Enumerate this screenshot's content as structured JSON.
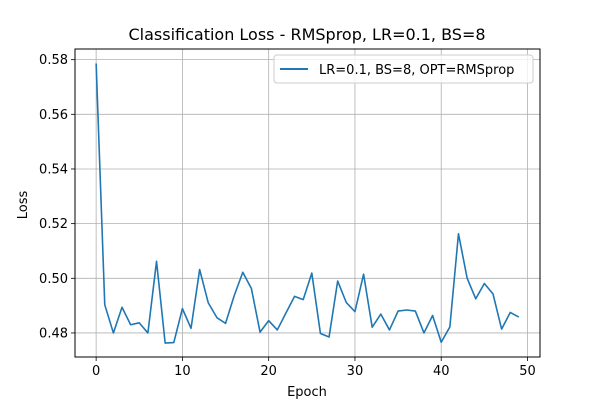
{
  "chart_data": {
    "type": "line",
    "title": "Classification Loss - RMSprop, LR=0.1, BS=8",
    "xlabel": "Epoch",
    "ylabel": "Loss",
    "xlim": [
      -2.45,
      51.45
    ],
    "ylim": [
      0.4712,
      0.5839
    ],
    "xticks": [
      0,
      10,
      20,
      30,
      40,
      50
    ],
    "yticks": [
      0.48,
      0.5,
      0.52,
      0.54,
      0.56,
      0.58
    ],
    "ytick_labels": [
      "0.48",
      "0.50",
      "0.52",
      "0.54",
      "0.56",
      "0.58"
    ],
    "grid": true,
    "legend_position": "upper-right",
    "series_color": "#1f77b4",
    "series": [
      {
        "name": "LR=0.1, BS=8, OPT=RMSprop",
        "x": [
          0,
          1,
          2,
          3,
          4,
          5,
          6,
          7,
          8,
          9,
          10,
          11,
          12,
          13,
          14,
          15,
          16,
          17,
          18,
          19,
          20,
          21,
          22,
          23,
          24,
          25,
          26,
          27,
          28,
          29,
          30,
          31,
          32,
          33,
          34,
          35,
          36,
          37,
          38,
          39,
          40,
          41,
          42,
          43,
          44,
          45,
          46,
          47,
          48,
          49
        ],
        "y": [
          0.5786,
          0.4903,
          0.48,
          0.4894,
          0.483,
          0.4837,
          0.48,
          0.5062,
          0.4763,
          0.4765,
          0.4889,
          0.4817,
          0.5032,
          0.491,
          0.4856,
          0.4835,
          0.4936,
          0.5022,
          0.4962,
          0.4803,
          0.4845,
          0.4811,
          0.4873,
          0.4934,
          0.4922,
          0.5019,
          0.4798,
          0.4785,
          0.499,
          0.4911,
          0.4878,
          0.5015,
          0.4821,
          0.4869,
          0.4811,
          0.488,
          0.4884,
          0.488,
          0.48,
          0.4864,
          0.4766,
          0.4822,
          0.5163,
          0.5001,
          0.4925,
          0.4981,
          0.4943,
          0.4814,
          0.4875,
          0.4858
        ]
      }
    ]
  }
}
